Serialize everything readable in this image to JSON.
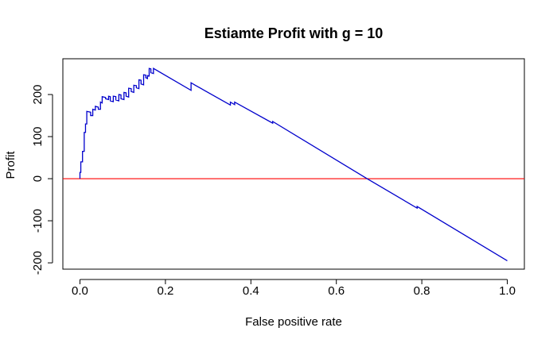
{
  "chart_data": {
    "type": "line",
    "title": "Estiamte Profit with g = 10",
    "xlabel": "False positive rate",
    "ylabel": "Profit",
    "xlim": [
      -0.04,
      1.04
    ],
    "ylim": [
      -215,
      285
    ],
    "x_ticks": [
      0.0,
      0.2,
      0.4,
      0.6,
      0.8,
      1.0
    ],
    "x_tick_labels": [
      "0.0",
      "0.2",
      "0.4",
      "0.6",
      "0.8",
      "1.0"
    ],
    "y_ticks": [
      -200,
      -100,
      0,
      100,
      200
    ],
    "y_tick_labels": [
      "-200",
      "-100",
      "0",
      "100",
      "200"
    ],
    "grid": false,
    "reference_line": {
      "y": 0,
      "color": "#ff0000"
    },
    "series": [
      {
        "color": "#0000cc",
        "step": true,
        "points": [
          [
            0.0,
            0
          ],
          [
            0.0,
            15
          ],
          [
            0.002,
            15
          ],
          [
            0.002,
            40
          ],
          [
            0.006,
            40
          ],
          [
            0.006,
            65
          ],
          [
            0.01,
            65
          ],
          [
            0.01,
            110
          ],
          [
            0.013,
            110
          ],
          [
            0.013,
            130
          ],
          [
            0.016,
            130
          ],
          [
            0.016,
            160
          ],
          [
            0.025,
            158
          ],
          [
            0.025,
            150
          ],
          [
            0.03,
            150
          ],
          [
            0.03,
            165
          ],
          [
            0.036,
            163
          ],
          [
            0.036,
            172
          ],
          [
            0.043,
            170
          ],
          [
            0.043,
            165
          ],
          [
            0.048,
            165
          ],
          [
            0.048,
            182
          ],
          [
            0.052,
            180
          ],
          [
            0.052,
            195
          ],
          [
            0.06,
            193
          ],
          [
            0.06,
            190
          ],
          [
            0.067,
            188
          ],
          [
            0.067,
            196
          ],
          [
            0.071,
            195
          ],
          [
            0.071,
            185
          ],
          [
            0.078,
            183
          ],
          [
            0.078,
            196
          ],
          [
            0.084,
            195
          ],
          [
            0.084,
            187
          ],
          [
            0.091,
            185
          ],
          [
            0.091,
            200
          ],
          [
            0.096,
            199
          ],
          [
            0.096,
            190
          ],
          [
            0.103,
            188
          ],
          [
            0.103,
            205
          ],
          [
            0.108,
            204
          ],
          [
            0.108,
            196
          ],
          [
            0.114,
            194
          ],
          [
            0.114,
            215
          ],
          [
            0.12,
            214
          ],
          [
            0.12,
            207
          ],
          [
            0.126,
            205
          ],
          [
            0.126,
            222
          ],
          [
            0.132,
            221
          ],
          [
            0.132,
            216
          ],
          [
            0.138,
            214
          ],
          [
            0.138,
            235
          ],
          [
            0.143,
            234
          ],
          [
            0.143,
            225
          ],
          [
            0.149,
            223
          ],
          [
            0.149,
            247
          ],
          [
            0.154,
            246
          ],
          [
            0.154,
            240
          ],
          [
            0.158,
            238
          ],
          [
            0.158,
            245
          ],
          [
            0.162,
            244
          ],
          [
            0.162,
            262
          ],
          [
            0.166,
            261
          ],
          [
            0.166,
            252
          ],
          [
            0.172,
            250
          ],
          [
            0.172,
            262
          ],
          [
            0.26,
            210
          ],
          [
            0.26,
            228
          ],
          [
            0.27,
            222
          ],
          [
            0.352,
            175
          ],
          [
            0.352,
            182
          ],
          [
            0.362,
            176
          ],
          [
            0.362,
            182
          ],
          [
            0.451,
            132
          ],
          [
            0.451,
            136
          ],
          [
            0.672,
            0
          ],
          [
            0.789,
            -70
          ],
          [
            0.789,
            -66
          ],
          [
            1.0,
            -195
          ]
        ]
      }
    ]
  }
}
